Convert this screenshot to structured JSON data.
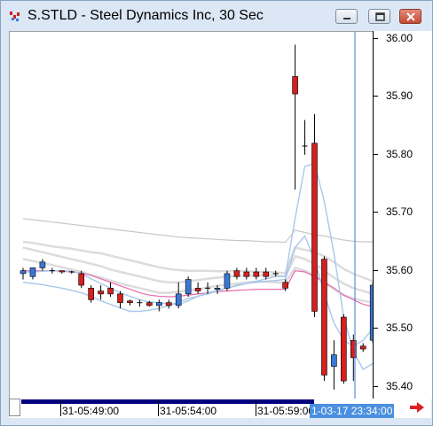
{
  "window": {
    "title": "S.STLD - Steel Dynamics Inc, 30 Sec"
  },
  "icons": {
    "app": "chart-app-icon",
    "minimize": "minimize-icon",
    "maximize": "maximize-icon",
    "close": "close-icon",
    "scroll_next": "right-arrow-icon"
  },
  "colors": {
    "up_candle": "#3a78d6",
    "down_candle": "#d42020",
    "ma_pink": "#e86bb0",
    "ma_light_blue": "#a7c8ea",
    "ma_gray": "#c8c8c8",
    "cursor_line": "#3a78d6"
  },
  "chart_data": {
    "type": "candlestick",
    "y_ticks": [
      "36.00",
      "35.90",
      "35.80",
      "35.70",
      "35.60",
      "35.50",
      "35.40"
    ],
    "ylim": [
      35.378,
      36.012
    ],
    "x_labels": [
      "31-05:49:00",
      "31-05:54:00",
      "31-05:59:00"
    ],
    "cursor_label": "1-03-17 23:34:00",
    "candles": [
      {
        "o": 35.595,
        "h": 35.605,
        "l": 35.585,
        "c": 35.6
      },
      {
        "o": 35.59,
        "h": 35.605,
        "l": 35.585,
        "c": 35.605
      },
      {
        "o": 35.605,
        "h": 35.62,
        "l": 35.6,
        "c": 35.615
      },
      {
        "o": 35.6,
        "h": 35.605,
        "l": 35.595,
        "c": 35.6
      },
      {
        "o": 35.6,
        "h": 35.6,
        "l": 35.595,
        "c": 35.598
      },
      {
        "o": 35.598,
        "h": 35.6,
        "l": 35.595,
        "c": 35.598
      },
      {
        "o": 35.595,
        "h": 35.6,
        "l": 35.57,
        "c": 35.575
      },
      {
        "o": 35.57,
        "h": 35.575,
        "l": 35.545,
        "c": 35.55
      },
      {
        "o": 35.565,
        "h": 35.575,
        "l": 35.55,
        "c": 35.56
      },
      {
        "o": 35.57,
        "h": 35.58,
        "l": 35.555,
        "c": 35.56
      },
      {
        "o": 35.56,
        "h": 35.565,
        "l": 35.535,
        "c": 35.545
      },
      {
        "o": 35.548,
        "h": 35.55,
        "l": 35.54,
        "c": 35.545
      },
      {
        "o": 35.545,
        "h": 35.55,
        "l": 35.538,
        "c": 35.545
      },
      {
        "o": 35.545,
        "h": 35.548,
        "l": 35.538,
        "c": 35.54
      },
      {
        "o": 35.54,
        "h": 35.55,
        "l": 35.53,
        "c": 35.545
      },
      {
        "o": 35.545,
        "h": 35.55,
        "l": 35.535,
        "c": 35.54
      },
      {
        "o": 35.54,
        "h": 35.58,
        "l": 35.535,
        "c": 35.56
      },
      {
        "o": 35.56,
        "h": 35.59,
        "l": 35.555,
        "c": 35.585
      },
      {
        "o": 35.57,
        "h": 35.58,
        "l": 35.56,
        "c": 35.565
      },
      {
        "o": 35.57,
        "h": 35.58,
        "l": 35.56,
        "c": 35.57
      },
      {
        "o": 35.568,
        "h": 35.575,
        "l": 35.56,
        "c": 35.57
      },
      {
        "o": 35.57,
        "h": 35.6,
        "l": 35.565,
        "c": 35.595
      },
      {
        "o": 35.6,
        "h": 35.605,
        "l": 35.585,
        "c": 35.59
      },
      {
        "o": 35.598,
        "h": 35.605,
        "l": 35.585,
        "c": 35.59
      },
      {
        "o": 35.598,
        "h": 35.605,
        "l": 35.585,
        "c": 35.59
      },
      {
        "o": 35.598,
        "h": 35.605,
        "l": 35.585,
        "c": 35.59
      },
      {
        "o": 35.595,
        "h": 35.6,
        "l": 35.59,
        "c": 35.595
      },
      {
        "o": 35.58,
        "h": 35.585,
        "l": 35.565,
        "c": 35.57
      },
      {
        "o": 35.935,
        "h": 35.99,
        "l": 35.74,
        "c": 35.905
      },
      {
        "o": 35.815,
        "h": 35.86,
        "l": 35.8,
        "c": 35.815
      },
      {
        "o": 35.82,
        "h": 35.87,
        "l": 35.52,
        "c": 35.53
      },
      {
        "o": 35.62,
        "h": 35.625,
        "l": 35.41,
        "c": 35.42
      },
      {
        "o": 35.435,
        "h": 35.48,
        "l": 35.395,
        "c": 35.455
      },
      {
        "o": 35.52,
        "h": 35.525,
        "l": 35.405,
        "c": 35.41
      },
      {
        "o": 35.48,
        "h": 35.49,
        "l": 35.41,
        "c": 35.45
      },
      {
        "o": 35.47,
        "h": 35.475,
        "l": 35.46,
        "c": 35.465
      },
      {
        "o": 35.48,
        "h": 35.58,
        "l": 35.475,
        "c": 35.575
      }
    ],
    "overlays": [
      {
        "color": "#c8c8c8",
        "width": 1.2,
        "values": [
          35.69,
          35.688,
          35.686,
          35.684,
          35.682,
          35.68,
          35.678,
          35.676,
          35.674,
          35.672,
          35.67,
          35.668,
          35.666,
          35.664,
          35.662,
          35.66,
          35.658,
          35.657,
          35.656,
          35.655,
          35.654,
          35.653,
          35.652,
          35.652,
          35.651,
          35.65,
          35.65,
          35.649,
          35.67,
          35.666,
          35.662,
          35.66,
          35.656,
          35.653,
          35.651,
          35.65,
          35.65
        ]
      },
      {
        "color": "#dcdcdc",
        "width": 2.5,
        "values": [
          35.65,
          35.648,
          35.645,
          35.642,
          35.64,
          35.638,
          35.635,
          35.632,
          35.63,
          35.626,
          35.622,
          35.618,
          35.614,
          35.61,
          35.606,
          35.603,
          35.601,
          35.6,
          35.6,
          35.6,
          35.599,
          35.599,
          35.599,
          35.599,
          35.598,
          35.598,
          35.597,
          35.596,
          35.64,
          35.636,
          35.632,
          35.625,
          35.615,
          35.603,
          35.595,
          35.588,
          35.582
        ]
      },
      {
        "color": "#dcdcdc",
        "width": 2.5,
        "values": [
          35.64,
          35.636,
          35.632,
          35.628,
          35.624,
          35.62,
          35.616,
          35.612,
          35.608,
          35.602,
          35.598,
          35.594,
          35.59,
          35.586,
          35.582,
          35.58,
          35.58,
          35.582,
          35.584,
          35.586,
          35.588,
          35.59,
          35.591,
          35.592,
          35.592,
          35.592,
          35.592,
          35.59,
          35.625,
          35.62,
          35.612,
          35.6,
          35.588,
          35.578,
          35.57,
          35.565,
          35.56
        ]
      },
      {
        "color": "#dcdcdc",
        "width": 2.5,
        "values": [
          35.62,
          35.617,
          35.613,
          35.61,
          35.606,
          35.602,
          35.598,
          35.593,
          35.588,
          35.583,
          35.578,
          35.574,
          35.57,
          35.566,
          35.562,
          35.562,
          35.564,
          35.566,
          35.568,
          35.571,
          35.574,
          35.576,
          35.578,
          35.58,
          35.581,
          35.581,
          35.58,
          35.579,
          35.605,
          35.6,
          35.592,
          35.58,
          35.568,
          35.558,
          35.552,
          35.548,
          35.545
        ]
      },
      {
        "color": "#e86bb0",
        "width": 1.2,
        "values": [
          35.6,
          35.6,
          35.6,
          35.6,
          35.599,
          35.598,
          35.596,
          35.592,
          35.586,
          35.58,
          35.574,
          35.568,
          35.562,
          35.558,
          35.556,
          35.555,
          35.556,
          35.558,
          35.56,
          35.562,
          35.564,
          35.565,
          35.566,
          35.567,
          35.568,
          35.568,
          35.568,
          35.568,
          35.6,
          35.598,
          35.59,
          35.58,
          35.57,
          35.558,
          35.55,
          35.542,
          35.538
        ]
      },
      {
        "color": "#a7c8ea",
        "width": 1.4,
        "values": [
          35.598,
          35.598,
          35.599,
          35.6,
          35.6,
          35.599,
          35.595,
          35.586,
          35.578,
          35.57,
          35.562,
          35.556,
          35.55,
          35.546,
          35.545,
          35.543,
          35.542,
          35.548,
          35.556,
          35.562,
          35.566,
          35.57,
          35.574,
          35.578,
          35.582,
          35.586,
          35.59,
          35.59,
          35.69,
          35.78,
          35.785,
          35.72,
          35.63,
          35.52,
          35.46,
          35.43,
          35.44
        ]
      },
      {
        "color": "#a7c8ea",
        "width": 1.4,
        "values": [
          35.58,
          35.578,
          35.576,
          35.573,
          35.57,
          35.566,
          35.562,
          35.556,
          35.548,
          35.542,
          35.536,
          35.53,
          35.53,
          35.532,
          35.535,
          35.54,
          35.546,
          35.552,
          35.556,
          35.56,
          35.565,
          35.57,
          35.575,
          35.578,
          35.58,
          35.582,
          35.583,
          35.585,
          35.64,
          35.66,
          35.62,
          35.56,
          35.51,
          35.48,
          35.47,
          35.48,
          35.5
        ]
      }
    ]
  }
}
